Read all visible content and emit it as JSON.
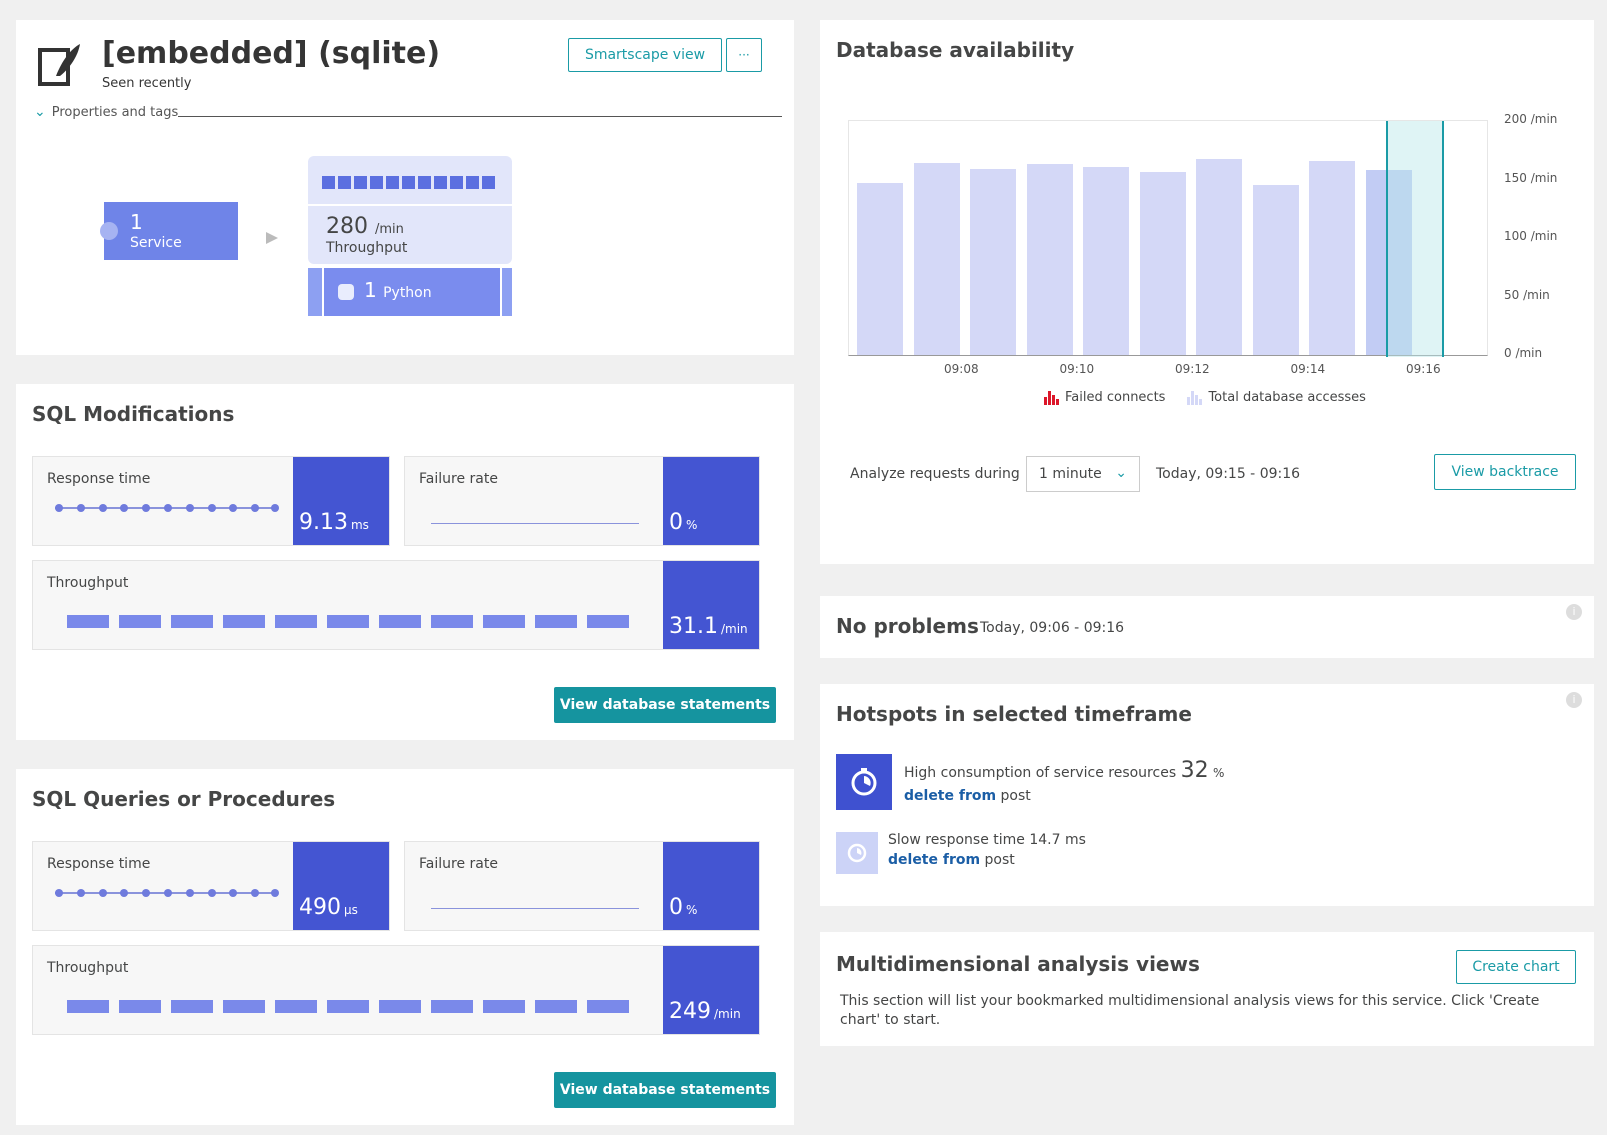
{
  "header": {
    "title": "[embedded] (sqlite)",
    "subtitle": "Seen recently",
    "smartscape_label": "Smartscape view",
    "more_label": "···",
    "properties_label": "Properties and tags"
  },
  "topology": {
    "service_count": "1",
    "service_label": "Service",
    "throughput_value": "280",
    "throughput_unit": "/min",
    "throughput_label": "Throughput",
    "process_count": "1",
    "process_label": "Python"
  },
  "sql_modifications": {
    "title": "SQL Modifications",
    "response_label": "Response time",
    "response_value": "9.13",
    "response_unit": "ms",
    "failure_label": "Failure rate",
    "failure_value": "0",
    "failure_unit": "%",
    "throughput_label": "Throughput",
    "throughput_value": "31.1",
    "throughput_unit": "/min",
    "button": "View database statements"
  },
  "sql_queries": {
    "title": "SQL Queries or Procedures",
    "response_label": "Response time",
    "response_value": "490",
    "response_unit": "µs",
    "failure_label": "Failure rate",
    "failure_value": "0",
    "failure_unit": "%",
    "throughput_label": "Throughput",
    "throughput_value": "249",
    "throughput_unit": "/min",
    "button": "View database statements"
  },
  "availability": {
    "title": "Database availability",
    "analyze_label": "Analyze requests during",
    "analyze_select": "1 minute",
    "analyze_range": "Today, 09:15 - 09:16",
    "backtrace_label": "View backtrace"
  },
  "chart_data": {
    "type": "bar",
    "title": "Database availability",
    "x_ticks": [
      "09:08",
      "09:10",
      "09:12",
      "09:14",
      "09:16"
    ],
    "y_ticks": [
      "200 /min",
      "150 /min",
      "100 /min",
      "50 /min",
      "0 /min"
    ],
    "ylim": [
      0,
      200
    ],
    "series": [
      {
        "name": "Failed connects",
        "color": "#dc172a",
        "values": [
          0,
          0,
          0,
          0,
          0,
          0,
          0,
          0,
          0,
          0
        ]
      },
      {
        "name": "Total database accesses",
        "color": "#d4d8f7",
        "values": [
          146,
          163,
          158,
          162,
          159,
          155,
          166,
          144,
          164,
          157
        ]
      }
    ],
    "grid": true,
    "legend": "bottom"
  },
  "problems": {
    "title": "No problems",
    "range": "Today, 09:06 - 09:16"
  },
  "hotspots": {
    "title": "Hotspots in selected timeframe",
    "items": [
      {
        "text": "High consumption of service resources",
        "value": "32",
        "unit": "%",
        "bold": "delete from",
        "rest": "post"
      },
      {
        "text": "Slow response time 14.7 ms",
        "bold": "delete from",
        "rest": "post"
      }
    ]
  },
  "multidim": {
    "title": "Multidimensional analysis views",
    "button": "Create chart",
    "description": "This section will list your bookmarked multidimensional analysis views for this service. Click 'Create chart' to start."
  }
}
